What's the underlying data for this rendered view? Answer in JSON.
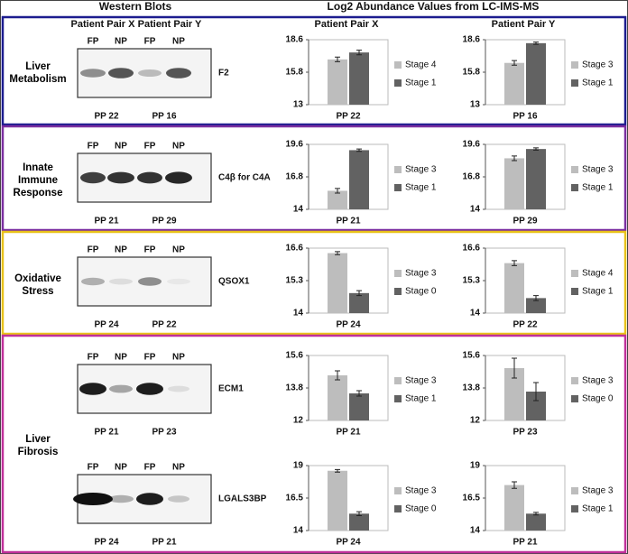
{
  "headers": {
    "western": "Western Blots",
    "log2": "Log2 Abundance Values from LC-IMS-MS",
    "blot_pair_x": "Patient Pair X",
    "blot_pair_y": "Patient Pair Y",
    "chart_pair_x": "Patient Pair X",
    "chart_pair_y": "Patient Pair Y"
  },
  "panels": [
    {
      "label": "Liver Metabolism",
      "border": "#1c1c8f",
      "rows": [
        {
          "blot": {
            "protein": "F2",
            "lanes": [
              {
                "label": "FP",
                "color": "#e01a1a"
              },
              {
                "label": "NP",
                "color": "#1d9a1d"
              },
              {
                "label": "FP",
                "color": "#e01a1a"
              },
              {
                "label": "NP",
                "color": "#1d9a1d"
              }
            ],
            "pairs": [
              "PP 22",
              "PP 16"
            ]
          },
          "charts": [
            {
              "type": "bar",
              "pair": "PP 22",
              "ylim": [
                13,
                18.6
              ],
              "yticks": [
                13,
                15.8,
                18.6
              ],
              "series": [
                {
                  "name": "Stage 4",
                  "color": "#bdbdbd",
                  "value": 16.9,
                  "error": 0.2
                },
                {
                  "name": "Stage 1",
                  "color": "#626262",
                  "value": 17.5,
                  "error": 0.2
                }
              ]
            },
            {
              "type": "bar",
              "pair": "PP 16",
              "ylim": [
                13,
                18.6
              ],
              "yticks": [
                13,
                15.8,
                18.6
              ],
              "series": [
                {
                  "name": "Stage 3",
                  "color": "#bdbdbd",
                  "value": 16.6,
                  "error": 0.2
                },
                {
                  "name": "Stage 1",
                  "color": "#626262",
                  "value": 18.3,
                  "error": 0.1
                }
              ]
            }
          ]
        }
      ]
    },
    {
      "label": "Innate Immune Response",
      "border": "#7b2fa0",
      "rows": [
        {
          "blot": {
            "protein": "C4β for C4A",
            "lanes": [
              {
                "label": "FP",
                "color": "#e01a1a"
              },
              {
                "label": "NP",
                "color": "#1d9a1d"
              },
              {
                "label": "FP",
                "color": "#e01a1a"
              },
              {
                "label": "NP",
                "color": "#1d9a1d"
              }
            ],
            "pairs": [
              "PP 21",
              "PP 29"
            ]
          },
          "charts": [
            {
              "type": "bar",
              "pair": "PP 21",
              "ylim": [
                14,
                19.6
              ],
              "yticks": [
                14,
                16.8,
                19.6
              ],
              "series": [
                {
                  "name": "Stage 3",
                  "color": "#bdbdbd",
                  "value": 15.6,
                  "error": 0.2
                },
                {
                  "name": "Stage 1",
                  "color": "#626262",
                  "value": 19.1,
                  "error": 0.1
                }
              ]
            },
            {
              "type": "bar",
              "pair": "PP 29",
              "ylim": [
                14,
                19.6
              ],
              "yticks": [
                14,
                16.8,
                19.6
              ],
              "series": [
                {
                  "name": "Stage 3",
                  "color": "#bdbdbd",
                  "value": 18.4,
                  "error": 0.2
                },
                {
                  "name": "Stage 1",
                  "color": "#626262",
                  "value": 19.2,
                  "error": 0.1
                }
              ]
            }
          ]
        }
      ]
    },
    {
      "label": "Oxidative Stress",
      "border": "#e8c21a",
      "rows": [
        {
          "blot": {
            "protein": "QSOX1",
            "lanes": [
              {
                "label": "FP",
                "color": "#e01a1a"
              },
              {
                "label": "NP",
                "color": "#1d9a1d"
              },
              {
                "label": "FP",
                "color": "#e01a1a"
              },
              {
                "label": "NP",
                "color": "#1d9a1d"
              }
            ],
            "pairs": [
              "PP 24",
              "PP 22"
            ]
          },
          "charts": [
            {
              "type": "bar",
              "pair": "PP 24",
              "ylim": [
                14,
                16.6
              ],
              "yticks": [
                14,
                15.3,
                16.6
              ],
              "series": [
                {
                  "name": "Stage 3",
                  "color": "#bdbdbd",
                  "value": 16.4,
                  "error": 0.06
                },
                {
                  "name": "Stage 0",
                  "color": "#626262",
                  "value": 14.8,
                  "error": 0.1
                }
              ]
            },
            {
              "type": "bar",
              "pair": "PP 22",
              "ylim": [
                14,
                16.6
              ],
              "yticks": [
                14,
                15.3,
                16.6
              ],
              "series": [
                {
                  "name": "Stage 4",
                  "color": "#bdbdbd",
                  "value": 16.0,
                  "error": 0.1
                },
                {
                  "name": "Stage 1",
                  "color": "#626262",
                  "value": 14.6,
                  "error": 0.1
                }
              ]
            }
          ]
        }
      ]
    },
    {
      "label": "Liver Fibrosis",
      "border": "#c0309a",
      "rows": [
        {
          "blot": {
            "protein": "ECM1",
            "lanes": [
              {
                "label": "FP",
                "color": "#e01a1a"
              },
              {
                "label": "NP",
                "color": "#1d9a1d"
              },
              {
                "label": "FP",
                "color": "#e01a1a"
              },
              {
                "label": "NP",
                "color": "#1d9a1d"
              }
            ],
            "pairs": [
              "PP 21",
              "PP 23"
            ]
          },
          "charts": [
            {
              "type": "bar",
              "pair": "PP 21",
              "ylim": [
                12,
                15.6
              ],
              "yticks": [
                12,
                13.8,
                15.6
              ],
              "series": [
                {
                  "name": "Stage 3",
                  "color": "#bdbdbd",
                  "value": 14.5,
                  "error": 0.25
                },
                {
                  "name": "Stage 1",
                  "color": "#626262",
                  "value": 13.5,
                  "error": 0.15
                }
              ]
            },
            {
              "type": "bar",
              "pair": "PP 23",
              "ylim": [
                12,
                15.6
              ],
              "yticks": [
                12,
                13.8,
                15.6
              ],
              "series": [
                {
                  "name": "Stage 3",
                  "color": "#bdbdbd",
                  "value": 14.9,
                  "error": 0.55
                },
                {
                  "name": "Stage 0",
                  "color": "#626262",
                  "value": 13.6,
                  "error": 0.5
                }
              ]
            }
          ]
        },
        {
          "blot": {
            "protein": "LGALS3BP",
            "lanes": [
              {
                "label": "FP",
                "color": "#e01a1a"
              },
              {
                "label": "NP",
                "color": "#1d9a1d"
              },
              {
                "label": "FP",
                "color": "#e01a1a"
              },
              {
                "label": "NP",
                "color": "#1d9a1d"
              }
            ],
            "pairs": [
              "PP 24",
              "PP 21"
            ]
          },
          "charts": [
            {
              "type": "bar",
              "pair": "PP 24",
              "ylim": [
                14,
                19
              ],
              "yticks": [
                14,
                16.5,
                19
              ],
              "series": [
                {
                  "name": "Stage 3",
                  "color": "#bdbdbd",
                  "value": 18.6,
                  "error": 0.1
                },
                {
                  "name": "Stage 0",
                  "color": "#626262",
                  "value": 15.3,
                  "error": 0.15
                }
              ]
            },
            {
              "type": "bar",
              "pair": "PP 21",
              "ylim": [
                14,
                19
              ],
              "yticks": [
                14,
                16.5,
                19
              ],
              "series": [
                {
                  "name": "Stage 3",
                  "color": "#bdbdbd",
                  "value": 17.5,
                  "error": 0.25
                },
                {
                  "name": "Stage 1",
                  "color": "#626262",
                  "value": 15.3,
                  "error": 0.1
                }
              ]
            }
          ]
        }
      ]
    }
  ]
}
